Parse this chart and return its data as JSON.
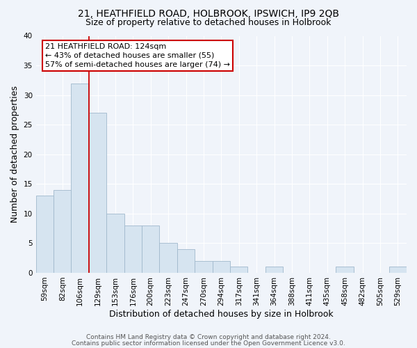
{
  "title": "21, HEATHFIELD ROAD, HOLBROOK, IPSWICH, IP9 2QB",
  "subtitle": "Size of property relative to detached houses in Holbrook",
  "xlabel": "Distribution of detached houses by size in Holbrook",
  "ylabel": "Number of detached properties",
  "bar_values": [
    13,
    14,
    32,
    27,
    10,
    8,
    8,
    5,
    4,
    2,
    2,
    1,
    0,
    1,
    0,
    0,
    0,
    1,
    0,
    0,
    1
  ],
  "bar_labels": [
    "59sqm",
    "82sqm",
    "106sqm",
    "129sqm",
    "153sqm",
    "176sqm",
    "200sqm",
    "223sqm",
    "247sqm",
    "270sqm",
    "294sqm",
    "317sqm",
    "341sqm",
    "364sqm",
    "388sqm",
    "411sqm",
    "435sqm",
    "458sqm",
    "482sqm",
    "505sqm",
    "529sqm"
  ],
  "bar_color": "#d6e4f0",
  "bar_edge_color": "#a0b8cc",
  "bar_width": 1.0,
  "red_line_x": 2.5,
  "annotation_text": "21 HEATHFIELD ROAD: 124sqm\n← 43% of detached houses are smaller (55)\n57% of semi-detached houses are larger (74) →",
  "annotation_box_color": "#ffffff",
  "annotation_box_edge": "#cc0000",
  "ylim": [
    0,
    40
  ],
  "yticks": [
    0,
    5,
    10,
    15,
    20,
    25,
    30,
    35,
    40
  ],
  "background_color": "#f0f4fa",
  "plot_bg_color": "#f0f4fa",
  "grid_color": "#ffffff",
  "title_fontsize": 10,
  "subtitle_fontsize": 9,
  "axis_label_fontsize": 9,
  "tick_fontsize": 7.5,
  "annotation_fontsize": 8,
  "footer_fontsize": 6.5
}
